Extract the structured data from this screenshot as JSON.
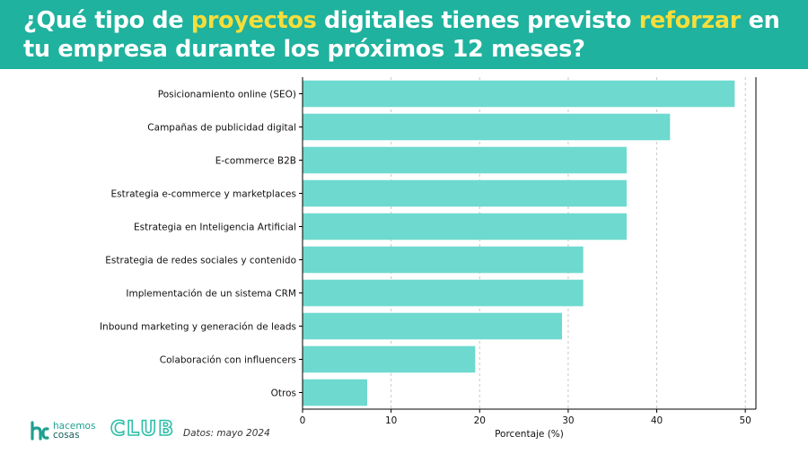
{
  "header": {
    "title_parts": [
      {
        "text": "¿Qué tipo de ",
        "highlight": false
      },
      {
        "text": "proyectos",
        "highlight": true
      },
      {
        "text": " digitales tienes previsto ",
        "highlight": false
      },
      {
        "text": "reforzar",
        "highlight": true
      },
      {
        "text": " en tu empresa durante los próximos 12 meses",
        "highlight": false
      },
      {
        "text": "?",
        "highlight": false
      }
    ],
    "background_color": "#1fb29e",
    "highlight_color": "#f5de3b"
  },
  "chart_data": {
    "type": "bar",
    "orientation": "horizontal",
    "categories": [
      "Posicionamiento online (SEO)",
      "Campañas de publicidad digital",
      "E-commerce B2B",
      "Estrategia e-commerce y marketplaces",
      "Estrategia en Inteligencia Artificial",
      "Estrategia de redes sociales y contenido",
      "Implementación de un sistema CRM",
      "Inbound marketing y generación de leads",
      "Colaboración con influencers",
      "Otros"
    ],
    "values": [
      48.8,
      41.5,
      36.6,
      36.6,
      36.6,
      31.7,
      31.7,
      29.3,
      19.5,
      7.3
    ],
    "xlabel": "Porcentaje (%)",
    "ylabel": "",
    "xlim": [
      0,
      51.2
    ],
    "xticks": [
      0,
      10,
      20,
      30,
      40,
      50
    ],
    "grid": "x-dashed",
    "bar_color": "#6ed9cf"
  },
  "footer": {
    "logo_line1": "hacemos",
    "logo_line2": "cosas",
    "club_text": "CLUB",
    "source_text": "Datos: mayo 2024"
  }
}
